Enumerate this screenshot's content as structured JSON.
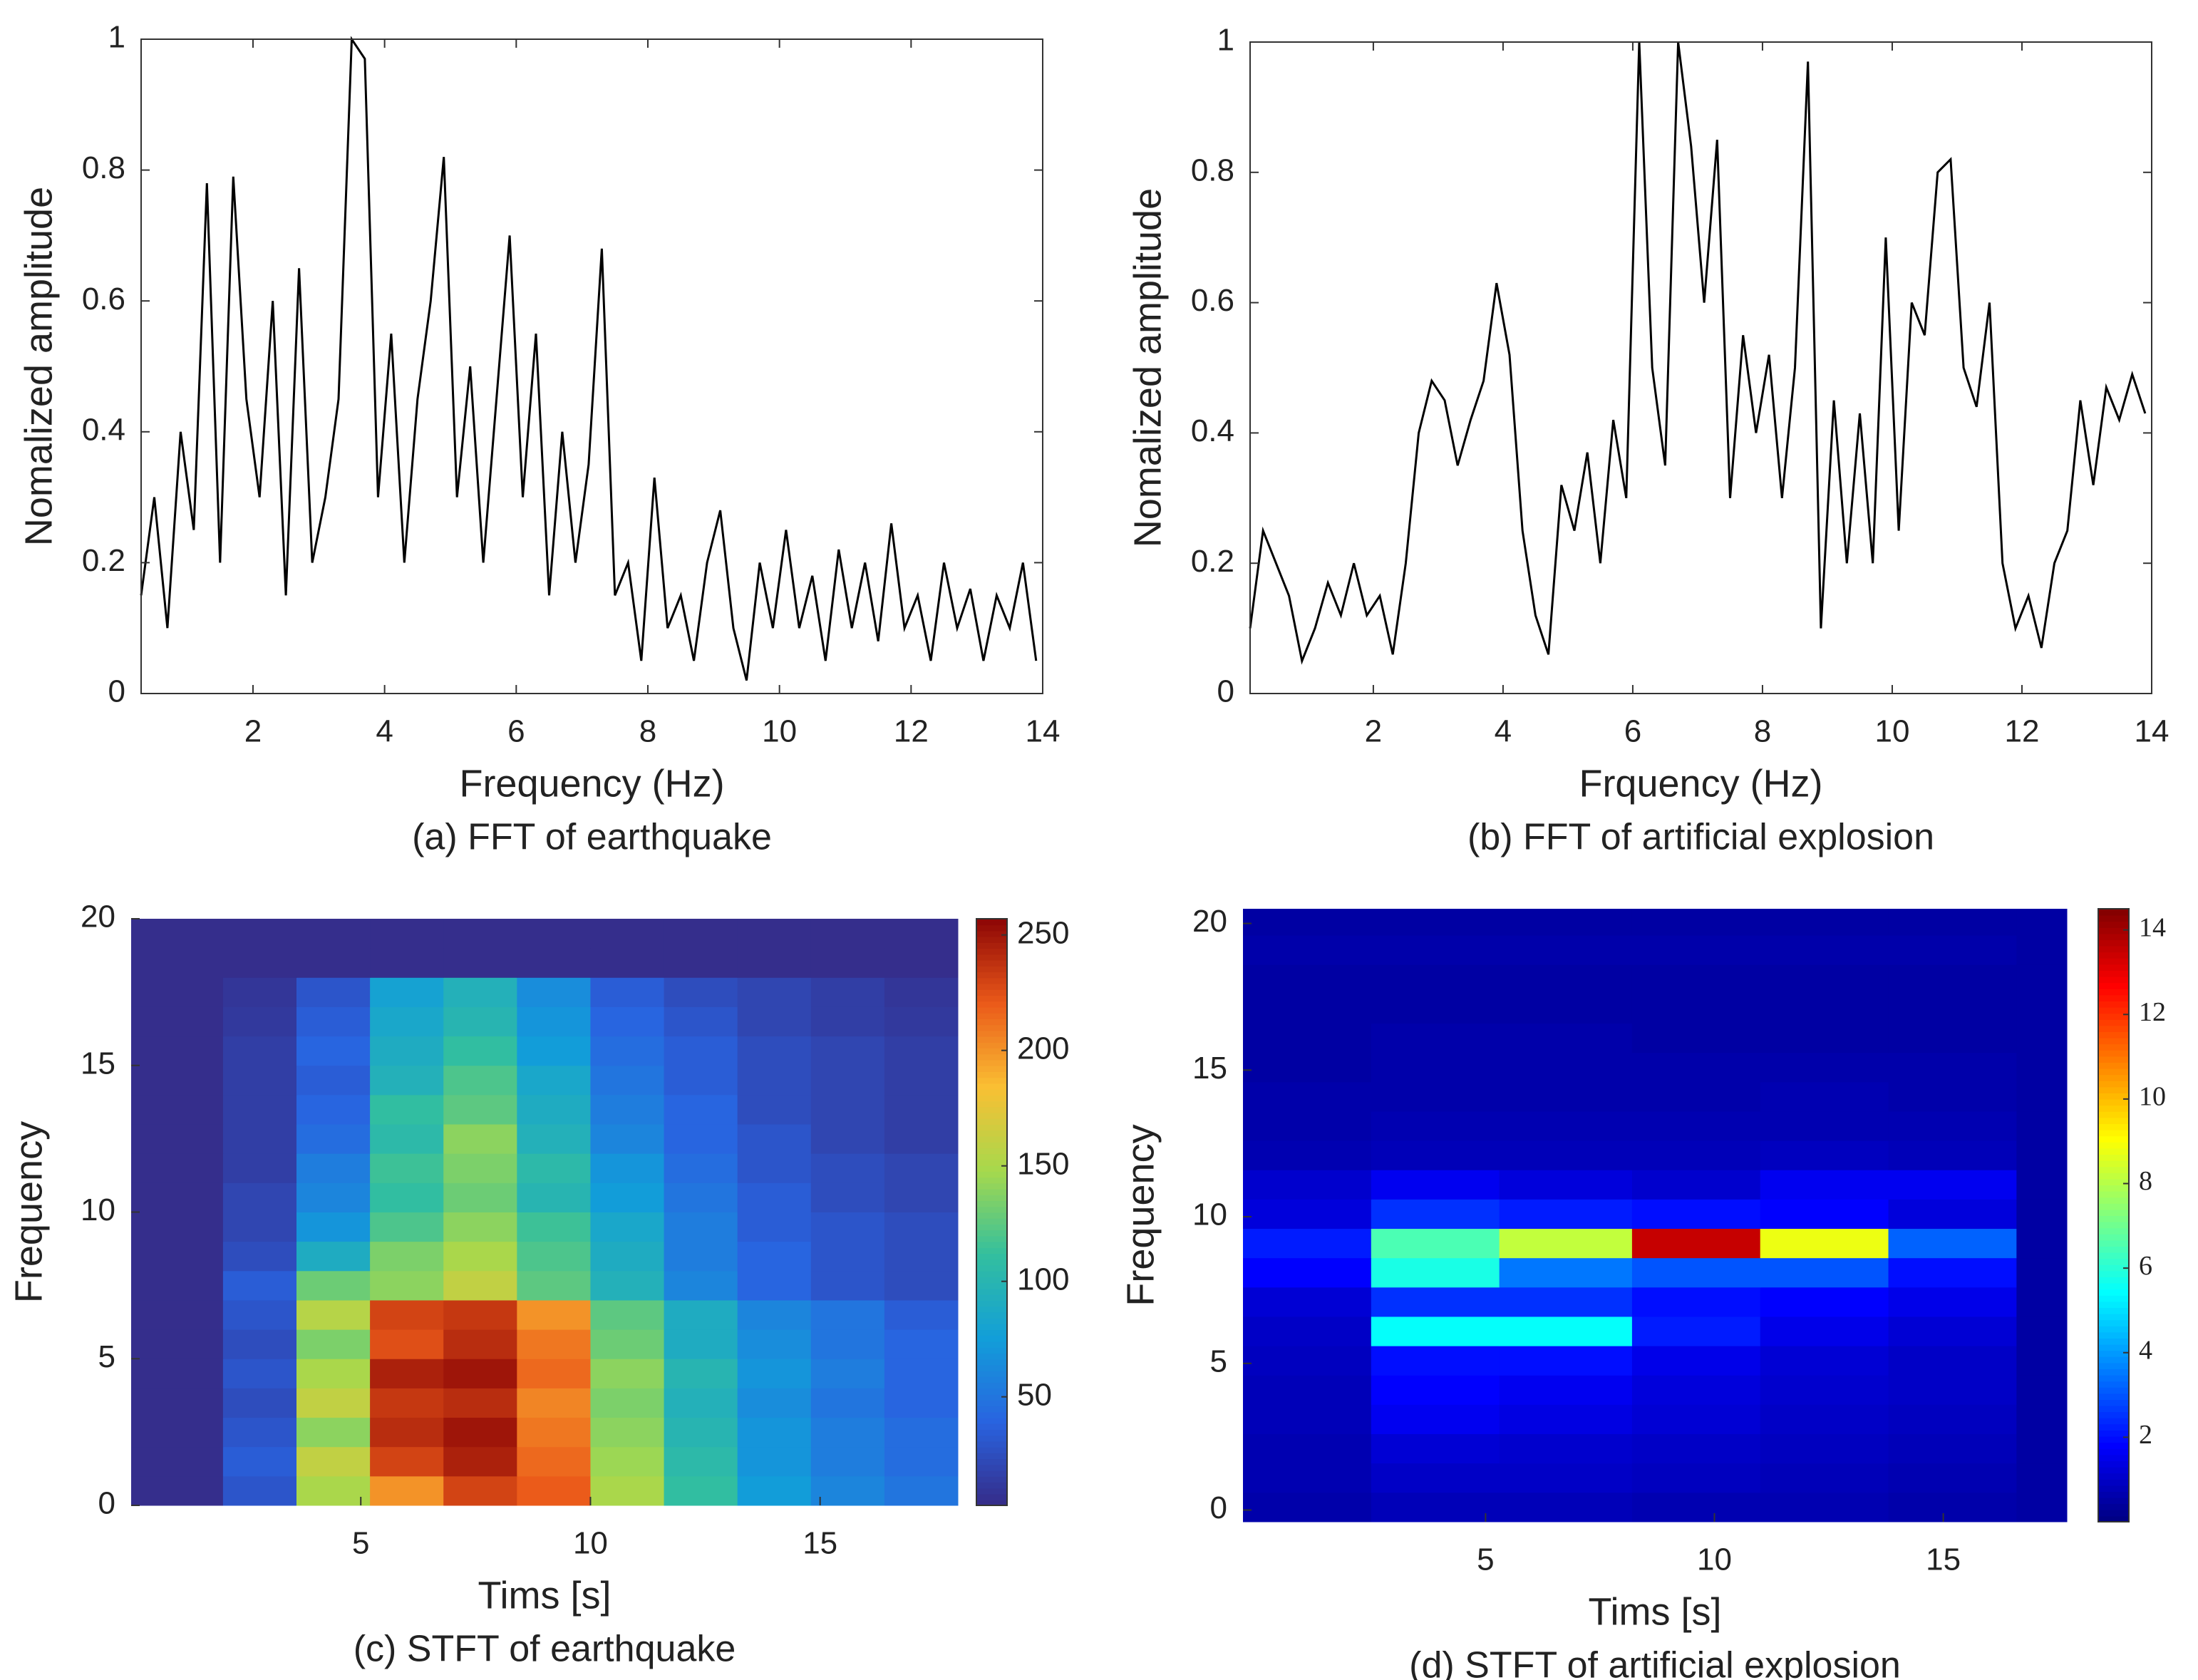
{
  "chart_data": [
    {
      "type": "line",
      "caption": "(a) FFT of earthquake",
      "xlabel": "Frequency (Hz)",
      "ylabel": "Nomalized amplitude",
      "color": "#000000",
      "xlim": [
        0.3,
        14
      ],
      "ylim": [
        0,
        1
      ],
      "xticks": [
        2,
        4,
        6,
        8,
        10,
        12,
        14
      ],
      "yticks": [
        0,
        0.2,
        0.4,
        0.6,
        0.8,
        1
      ],
      "x": [
        0.3,
        0.5,
        0.7,
        0.9,
        1.1,
        1.3,
        1.5,
        1.7,
        1.9,
        2.1,
        2.3,
        2.5,
        2.7,
        2.9,
        3.1,
        3.3,
        3.5,
        3.7,
        3.9,
        4.1,
        4.3,
        4.5,
        4.7,
        4.9,
        5.1,
        5.3,
        5.5,
        5.7,
        5.9,
        6.1,
        6.3,
        6.5,
        6.7,
        6.9,
        7.1,
        7.3,
        7.5,
        7.7,
        7.9,
        8.1,
        8.3,
        8.5,
        8.7,
        8.9,
        9.1,
        9.3,
        9.5,
        9.7,
        9.9,
        10.1,
        10.3,
        10.5,
        10.7,
        10.9,
        11.1,
        11.3,
        11.5,
        11.7,
        11.9,
        12.1,
        12.3,
        12.5,
        12.7,
        12.9,
        13.1,
        13.3,
        13.5,
        13.7,
        13.9
      ],
      "values": [
        0.15,
        0.3,
        0.1,
        0.4,
        0.25,
        0.78,
        0.2,
        0.79,
        0.45,
        0.3,
        0.6,
        0.15,
        0.65,
        0.2,
        0.3,
        0.45,
        1.0,
        0.97,
        0.3,
        0.55,
        0.2,
        0.45,
        0.6,
        0.82,
        0.3,
        0.5,
        0.2,
        0.45,
        0.7,
        0.3,
        0.55,
        0.15,
        0.4,
        0.2,
        0.35,
        0.68,
        0.15,
        0.2,
        0.05,
        0.33,
        0.1,
        0.15,
        0.05,
        0.2,
        0.28,
        0.1,
        0.02,
        0.2,
        0.1,
        0.25,
        0.1,
        0.18,
        0.05,
        0.22,
        0.1,
        0.2,
        0.08,
        0.26,
        0.1,
        0.15,
        0.05,
        0.2,
        0.1,
        0.16,
        0.05,
        0.15,
        0.1,
        0.2,
        0.05
      ]
    },
    {
      "type": "line",
      "caption": "(b) FFT of artificial explosion",
      "xlabel": "Frquency (Hz)",
      "ylabel": "Nomalized amplitude",
      "color": "#000000",
      "xlim": [
        0.1,
        14
      ],
      "ylim": [
        0,
        1
      ],
      "xticks": [
        2,
        4,
        6,
        8,
        10,
        12,
        14
      ],
      "yticks": [
        0,
        0.2,
        0.4,
        0.6,
        0.8,
        1
      ],
      "x": [
        0.1,
        0.3,
        0.5,
        0.7,
        0.9,
        1.1,
        1.3,
        1.5,
        1.7,
        1.9,
        2.1,
        2.3,
        2.5,
        2.7,
        2.9,
        3.1,
        3.3,
        3.5,
        3.7,
        3.9,
        4.1,
        4.3,
        4.5,
        4.7,
        4.9,
        5.1,
        5.3,
        5.5,
        5.7,
        5.9,
        6.1,
        6.3,
        6.5,
        6.7,
        6.9,
        7.1,
        7.3,
        7.5,
        7.7,
        7.9,
        8.1,
        8.3,
        8.5,
        8.7,
        8.9,
        9.1,
        9.3,
        9.5,
        9.7,
        9.9,
        10.1,
        10.3,
        10.5,
        10.7,
        10.9,
        11.1,
        11.3,
        11.5,
        11.7,
        11.9,
        12.1,
        12.3,
        12.5,
        12.7,
        12.9,
        13.1,
        13.3,
        13.5,
        13.7,
        13.9
      ],
      "values": [
        0.1,
        0.25,
        0.2,
        0.15,
        0.05,
        0.1,
        0.17,
        0.12,
        0.2,
        0.12,
        0.15,
        0.06,
        0.2,
        0.4,
        0.48,
        0.45,
        0.35,
        0.42,
        0.48,
        0.63,
        0.52,
        0.25,
        0.12,
        0.06,
        0.32,
        0.25,
        0.37,
        0.2,
        0.42,
        0.3,
        1.0,
        0.5,
        0.35,
        1.0,
        0.84,
        0.6,
        0.85,
        0.3,
        0.55,
        0.4,
        0.52,
        0.3,
        0.5,
        0.97,
        0.1,
        0.45,
        0.2,
        0.43,
        0.2,
        0.7,
        0.25,
        0.6,
        0.55,
        0.8,
        0.82,
        0.5,
        0.44,
        0.6,
        0.2,
        0.1,
        0.15,
        0.07,
        0.2,
        0.25,
        0.45,
        0.32,
        0.47,
        0.42,
        0.49,
        0.43
      ]
    },
    {
      "type": "heatmap",
      "caption": "(c) STFT of earthquake",
      "xlabel": "Tims [s]",
      "ylabel": "Frequency",
      "colormap": "parula",
      "xlim": [
        0,
        18
      ],
      "ylim": [
        0,
        20
      ],
      "zlim": [
        3,
        257
      ],
      "xticks": [
        5,
        10,
        15
      ],
      "yticks": [
        0,
        5,
        10,
        15,
        20
      ],
      "zticks": [
        50,
        100,
        150,
        200,
        250
      ],
      "xbins": [
        0,
        2,
        3.6,
        5.2,
        6.8,
        8.4,
        10,
        11.6,
        13.2,
        14.8,
        16.4,
        18
      ],
      "ybins": [
        0,
        1,
        2,
        3,
        4,
        5,
        6,
        7,
        8,
        9,
        10,
        11,
        12,
        13,
        14,
        15,
        16,
        17,
        18,
        19,
        20
      ],
      "values": [
        [
          5,
          30,
          150,
          200,
          230,
          220,
          150,
          110,
          75,
          60,
          50
        ],
        [
          5,
          35,
          160,
          230,
          245,
          215,
          145,
          105,
          70,
          55,
          45
        ],
        [
          5,
          30,
          140,
          240,
          250,
          210,
          140,
          100,
          70,
          55,
          45
        ],
        [
          5,
          25,
          160,
          235,
          240,
          205,
          135,
          95,
          65,
          50,
          40
        ],
        [
          5,
          30,
          150,
          245,
          250,
          215,
          140,
          100,
          70,
          55,
          40
        ],
        [
          5,
          25,
          135,
          225,
          240,
          210,
          130,
          90,
          65,
          50,
          40
        ],
        [
          5,
          30,
          155,
          230,
          235,
          200,
          125,
          90,
          60,
          50,
          35
        ],
        [
          5,
          35,
          130,
          140,
          160,
          125,
          95,
          60,
          40,
          30,
          25
        ],
        [
          5,
          25,
          90,
          135,
          150,
          120,
          90,
          55,
          40,
          30,
          25
        ],
        [
          5,
          20,
          70,
          120,
          140,
          115,
          85,
          55,
          35,
          30,
          25
        ],
        [
          5,
          20,
          60,
          110,
          130,
          100,
          75,
          50,
          35,
          25,
          20
        ],
        [
          5,
          15,
          55,
          115,
          135,
          105,
          70,
          45,
          30,
          25,
          20
        ],
        [
          5,
          15,
          45,
          105,
          140,
          95,
          60,
          40,
          30,
          20,
          15
        ],
        [
          5,
          15,
          40,
          110,
          125,
          90,
          55,
          40,
          25,
          20,
          15
        ],
        [
          5,
          15,
          35,
          95,
          120,
          85,
          50,
          35,
          25,
          20,
          15
        ],
        [
          5,
          15,
          40,
          90,
          110,
          75,
          45,
          35,
          25,
          20,
          15
        ],
        [
          5,
          12,
          35,
          85,
          100,
          70,
          40,
          30,
          20,
          15,
          12
        ],
        [
          5,
          10,
          30,
          80,
          95,
          65,
          35,
          25,
          20,
          15,
          10
        ],
        [
          5,
          5,
          5,
          5,
          5,
          5,
          5,
          5,
          5,
          5,
          5
        ],
        [
          5,
          5,
          5,
          5,
          5,
          5,
          5,
          5,
          5,
          5,
          5
        ]
      ]
    },
    {
      "type": "heatmap",
      "caption": "(d) STFT of artificial explosion",
      "xlabel": "Tims [s]",
      "ylabel": "Frequency",
      "colormap": "jet",
      "xlim": [
        -0.3,
        17.7
      ],
      "ylim": [
        -0.4,
        20.5
      ],
      "zlim": [
        0,
        14.5
      ],
      "xticks": [
        5,
        10,
        15
      ],
      "yticks": [
        0,
        5,
        10,
        15,
        20
      ],
      "zticks": [
        2,
        4,
        6,
        8,
        10,
        12,
        14
      ],
      "xbins": [
        -0.3,
        2.5,
        5.3,
        8.2,
        11,
        13.8,
        16.6,
        17.7
      ],
      "ybins": [
        -0.4,
        0.6,
        1.6,
        2.6,
        3.6,
        4.6,
        5.6,
        6.6,
        7.6,
        8.6,
        9.6,
        10.6,
        11.6,
        12.6,
        13.6,
        14.6,
        15.6,
        16.6,
        17.6,
        18.6,
        19.6,
        20.5
      ],
      "values": [
        [
          0.6,
          0.8,
          0.8,
          0.7,
          0.7,
          0.6,
          0.5
        ],
        [
          0.7,
          1.0,
          1.0,
          0.9,
          0.8,
          0.7,
          0.5
        ],
        [
          0.7,
          1.2,
          1.1,
          1.0,
          0.9,
          0.8,
          0.5
        ],
        [
          0.8,
          1.6,
          1.4,
          1.2,
          1.0,
          0.9,
          0.5
        ],
        [
          0.8,
          1.8,
          1.6,
          1.3,
          1.1,
          1.0,
          0.5
        ],
        [
          0.9,
          2.0,
          2.0,
          1.5,
          1.2,
          1.0,
          0.5
        ],
        [
          1.0,
          5.5,
          5.5,
          2.2,
          1.5,
          1.2,
          0.5
        ],
        [
          1.2,
          2.5,
          2.5,
          2.0,
          1.8,
          1.5,
          0.5
        ],
        [
          1.8,
          5.8,
          3.5,
          3.0,
          3.0,
          2.0,
          0.5
        ],
        [
          2.2,
          6.5,
          8.2,
          13.5,
          8.8,
          3.2,
          0.5
        ],
        [
          1.3,
          2.5,
          2.2,
          2.0,
          1.8,
          1.3,
          0.5
        ],
        [
          1.1,
          1.6,
          1.3,
          1.1,
          1.6,
          1.6,
          0.5
        ],
        [
          0.7,
          0.8,
          0.8,
          0.8,
          0.9,
          0.8,
          0.5
        ],
        [
          0.6,
          0.7,
          0.7,
          0.7,
          0.7,
          0.7,
          0.5
        ],
        [
          0.6,
          0.6,
          0.6,
          0.6,
          0.7,
          0.6,
          0.5
        ],
        [
          0.5,
          0.6,
          0.6,
          0.6,
          0.6,
          0.6,
          0.5
        ],
        [
          0.5,
          0.6,
          0.6,
          0.5,
          0.5,
          0.5,
          0.5
        ],
        [
          0.5,
          0.5,
          0.5,
          0.5,
          0.5,
          0.5,
          0.5
        ],
        [
          0.5,
          0.5,
          0.5,
          0.5,
          0.5,
          0.5,
          0.5
        ],
        [
          0.6,
          0.6,
          0.6,
          0.6,
          0.6,
          0.6,
          0.5
        ],
        [
          0.5,
          0.5,
          0.5,
          0.5,
          0.5,
          0.5,
          0.5
        ]
      ]
    }
  ]
}
